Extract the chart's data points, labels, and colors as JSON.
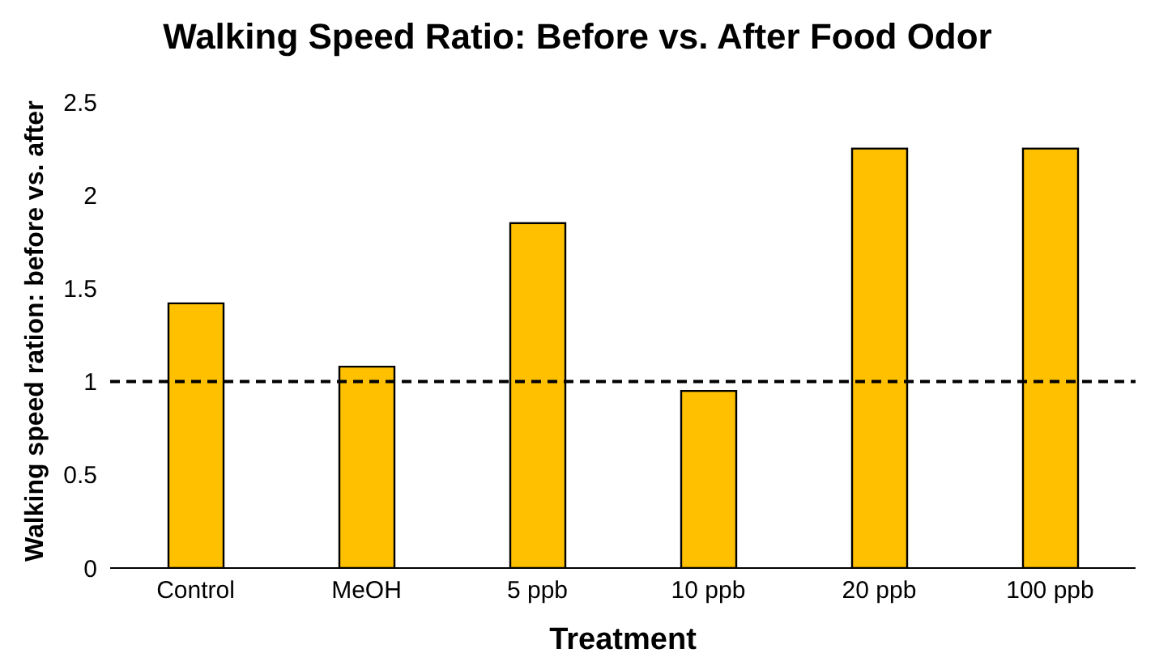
{
  "chart_data": {
    "type": "bar",
    "title": "Walking Speed Ratio: Before vs. After Food Odor",
    "xlabel": "Treatment",
    "ylabel": "Walking speed ration: before vs. after",
    "categories": [
      "Control",
      "MeOH",
      "5 ppb",
      "10 ppb",
      "20 ppb",
      "100 ppb"
    ],
    "values": [
      1.42,
      1.08,
      1.85,
      0.95,
      2.25,
      2.25
    ],
    "color": "#ffc000",
    "ylim": [
      0,
      2.5
    ],
    "yticks": [
      0,
      0.5,
      1,
      1.5,
      2,
      2.5
    ],
    "grid": false,
    "ref_lines": [
      {
        "axis": "y",
        "value": 1,
        "color": "#000000",
        "line_style": "dashed"
      }
    ]
  }
}
